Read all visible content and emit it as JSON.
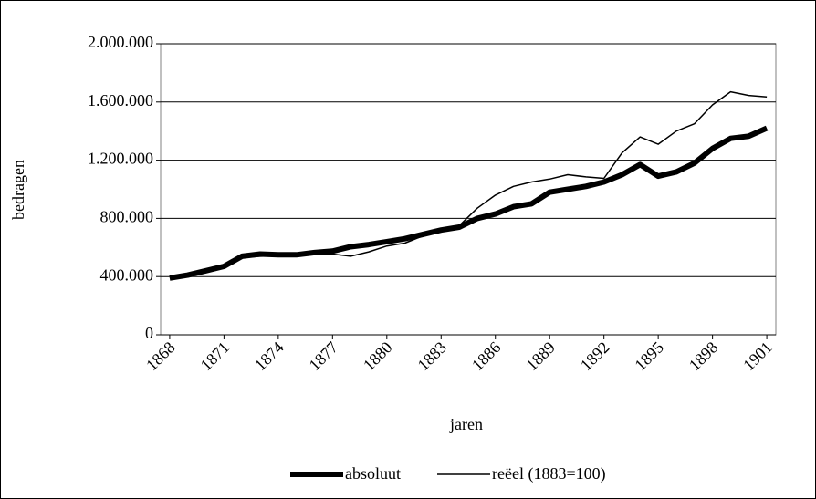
{
  "chart_data": {
    "type": "line",
    "x_label": "jaren",
    "y_label": "bedragen",
    "categories": [
      "1868",
      null,
      null,
      "1871",
      null,
      null,
      "1874",
      null,
      null,
      "1877",
      null,
      null,
      "1880",
      null,
      null,
      "1883",
      null,
      null,
      "1886",
      null,
      null,
      "1889",
      null,
      null,
      "1892",
      null,
      null,
      "1895",
      null,
      null,
      "1898",
      null,
      null,
      "1901"
    ],
    "series": [
      {
        "name": "absoluut",
        "color": "#000000",
        "width": 6,
        "values": [
          390000,
          410000,
          440000,
          470000,
          540000,
          555000,
          550000,
          550000,
          565000,
          575000,
          605000,
          620000,
          640000,
          660000,
          690000,
          720000,
          740000,
          800000,
          830000,
          880000,
          900000,
          980000,
          1000000,
          1020000,
          1050000,
          1100000,
          1170000,
          1090000,
          1120000,
          1180000,
          1280000,
          1350000,
          1365000,
          1420000
        ]
      },
      {
        "name": "reëel (1883=100)",
        "color": "#000000",
        "width": 1.5,
        "values": [
          390000,
          405000,
          440000,
          470000,
          530000,
          540000,
          545000,
          545000,
          555000,
          555000,
          540000,
          570000,
          610000,
          630000,
          680000,
          720000,
          750000,
          870000,
          960000,
          1020000,
          1050000,
          1070000,
          1100000,
          1085000,
          1075000,
          1250000,
          1360000,
          1310000,
          1400000,
          1450000,
          1580000,
          1670000,
          1645000,
          1635000
        ]
      }
    ],
    "ylim": [
      0,
      2000000
    ],
    "yticks": [
      {
        "value": 0,
        "label": "0"
      },
      {
        "value": 400000,
        "label": "400.000"
      },
      {
        "value": 800000,
        "label": "800.000"
      },
      {
        "value": 1200000,
        "label": "1.200.000"
      },
      {
        "value": 1600000,
        "label": "1.600.000"
      },
      {
        "value": 2000000,
        "label": "2.000.000"
      }
    ],
    "grid": true,
    "legend": "bottom"
  }
}
